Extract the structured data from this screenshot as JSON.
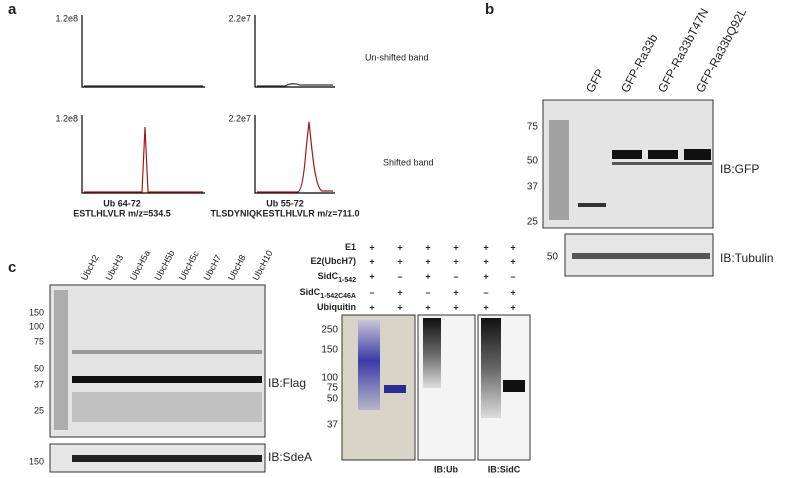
{
  "a": {
    "label": "a",
    "rows": [
      {
        "name": "Un-shifted band",
        "scales": [
          "1.2e8",
          "2.2e7"
        ]
      },
      {
        "name": "Shifted band",
        "scales": [
          "1.2e8",
          "2.2e7"
        ]
      }
    ],
    "peptides": [
      {
        "name": "Ub 64-72",
        "sequence": "ESTLHLVLR m/z=534.5"
      },
      {
        "name": "Ub 55-72",
        "sequence": "TLSDYNIQKESTLHLVLR m/z=711.0"
      }
    ]
  },
  "b": {
    "label": "b",
    "lanes": [
      "GFP",
      "GFP-Ra33b",
      "GFP-Ra33bT47N",
      "GFP-Ra33bQ92L"
    ],
    "gfp_blot": {
      "markers": [
        "75",
        "50",
        "37",
        "25"
      ],
      "label": "IB:GFP"
    },
    "tubulin_blot": {
      "markers": [
        "50"
      ],
      "label": "IB:Tubulin"
    }
  },
  "c": {
    "label": "c",
    "lanes": [
      "UbcH2",
      "UbcH3",
      "UbcH5a",
      "UbcH5b",
      "UbcH5c",
      "UbcH7",
      "UbcH8",
      "UbcH10"
    ],
    "flag_blot": {
      "markers": [
        "150",
        "100",
        "75",
        "50",
        "37",
        "25"
      ],
      "label": "IB:Flag"
    },
    "sdea_blot": {
      "markers": [
        "150"
      ],
      "label": "IB:SdeA"
    },
    "reaction": {
      "conditions": [
        {
          "name": "E1"
        },
        {
          "name": "E2(UbcH7)"
        },
        {
          "name": "SidC",
          "sub": "1-542"
        },
        {
          "name": "SidC",
          "sub": "1-542C46A"
        },
        {
          "name": "Ubiquitin"
        }
      ],
      "signs": [
        [
          "+",
          "+",
          "+",
          "+",
          "+",
          "+"
        ],
        [
          "+",
          "+",
          "+",
          "+",
          "+",
          "+"
        ],
        [
          "+",
          "–",
          "+",
          "–",
          "+",
          "–"
        ],
        [
          "–",
          "+",
          "–",
          "+",
          "–",
          "+"
        ],
        [
          "+",
          "+",
          "+",
          "+",
          "+",
          "+"
        ]
      ],
      "gel_markers": [
        "250",
        "150",
        "100",
        "75",
        "50",
        "37"
      ],
      "blot_labels": [
        "IB:Ub",
        "IB:SidC"
      ]
    }
  }
}
